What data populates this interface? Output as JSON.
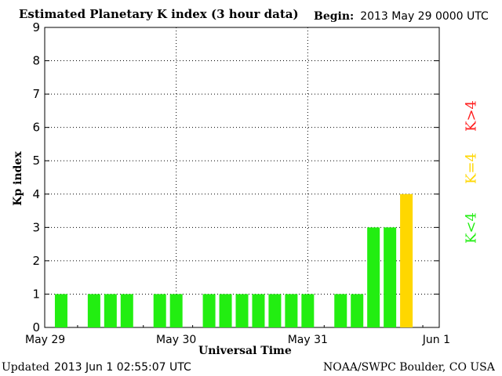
{
  "header": {
    "title": "Estimated Planetary K index (3 hour data)",
    "begin_label": "Begin:",
    "begin_value": "2013 May 29 0000 UTC"
  },
  "footer": {
    "updated_label": "Updated",
    "updated_value": "2013 Jun  1 02:55:07 UTC",
    "source": "NOAA/SWPC Boulder, CO USA"
  },
  "legend": {
    "high": {
      "label": "K>4",
      "color": "#ff2020"
    },
    "mid": {
      "label": "K=4",
      "color": "#ffd700"
    },
    "low": {
      "label": "K<4",
      "color": "#22ee11"
    }
  },
  "chart_data": {
    "type": "bar",
    "title": "Estimated Planetary K index (3 hour data)",
    "xlabel": "Universal Time",
    "ylabel": "Kp index",
    "ylim": [
      0,
      9
    ],
    "yticks": [
      0,
      1,
      2,
      3,
      4,
      5,
      6,
      7,
      8,
      9
    ],
    "x_tick_labels": [
      "May 29",
      "May 30",
      "May 31",
      "Jun 1"
    ],
    "grid": true,
    "bar_interval": "3 hour",
    "values": [
      1,
      null,
      1,
      1,
      1,
      null,
      1,
      1,
      null,
      1,
      1,
      1,
      1,
      1,
      1,
      1,
      null,
      1,
      1,
      3,
      3,
      4
    ],
    "colors": {
      "below_4": "#22ee11",
      "equal_4": "#ffd700",
      "above_4": "#ff2020"
    }
  }
}
